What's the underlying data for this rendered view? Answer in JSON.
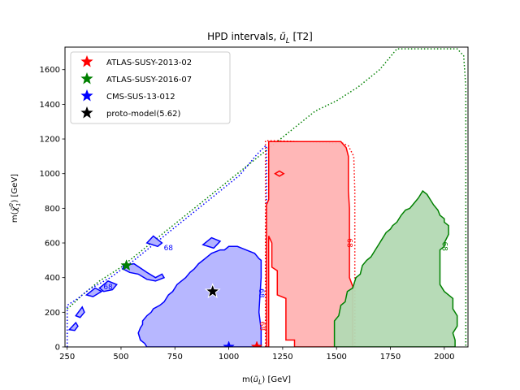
{
  "chart_data": {
    "type": "area",
    "title": "HPD intervals, ũ_L [T2]",
    "title_parts": {
      "main": "HPD intervals, ",
      "symbol": "ũ",
      "sub": "L",
      "tail": " [T2]"
    },
    "xlabel": "m(ũ_L) [GeV]",
    "xlabel_parts": {
      "pre": "m(",
      "symbol": "ũ",
      "sub": "L",
      "post": ") [GeV]"
    },
    "ylabel": "m(χ̃⁰₁) [GeV]",
    "ylabel_parts": {
      "pre": "m(",
      "symbol": "χ̃",
      "sup": "0",
      "sub": "1",
      "post": ") [GeV]"
    },
    "xlim": [
      240,
      2110
    ],
    "ylim": [
      0,
      1730
    ],
    "xticks": [
      "250",
      "500",
      "750",
      "1000",
      "1250",
      "1500",
      "1750",
      "2000"
    ],
    "xtick_values": [
      250,
      500,
      750,
      1000,
      1250,
      1500,
      1750,
      2000
    ],
    "yticks": [
      "0",
      "200",
      "400",
      "600",
      "800",
      "1000",
      "1200",
      "1400",
      "1600"
    ],
    "ytick_values": [
      0,
      200,
      400,
      600,
      800,
      1000,
      1200,
      1400,
      1600
    ],
    "grid": false,
    "legend_position": "top-left",
    "legend": [
      {
        "label": "ATLAS-SUSY-2013-02",
        "color": "#ff0000"
      },
      {
        "label": "ATLAS-SUSY-2016-07",
        "color": "#008000"
      },
      {
        "label": "CMS-SUS-13-012",
        "color": "#0000ff"
      },
      {
        "label": "proto-model(5.62)",
        "color": "#000000"
      }
    ],
    "contour_level_label": "68",
    "series": [
      {
        "name": "ATLAS-SUSY-2013-02",
        "color": "#ff0000",
        "fill": "#ffb3b3",
        "region": [
          [
            1175,
            0
          ],
          [
            1175,
            1185
          ],
          [
            1215,
            1185
          ],
          [
            1215,
            1180
          ],
          [
            1525,
            1180
          ],
          [
            1545,
            1150
          ],
          [
            1560,
            1100
          ],
          [
            1560,
            1000
          ],
          [
            1565,
            850
          ],
          [
            1570,
            600
          ],
          [
            1575,
            400
          ],
          [
            1575,
            0
          ],
          [
            1475,
            0
          ],
          [
            1470,
            40
          ],
          [
            1440,
            40
          ],
          [
            1420,
            100
          ],
          [
            1380,
            100
          ],
          [
            1360,
            30
          ],
          [
            1300,
            0
          ],
          [
            1300,
            0
          ]
        ],
        "region_display": [
          [
            1175,
            0
          ],
          [
            1175,
            820
          ],
          [
            1185,
            850
          ],
          [
            1185,
            1185
          ],
          [
            1520,
            1185
          ],
          [
            1545,
            1150
          ],
          [
            1555,
            1100
          ],
          [
            1555,
            900
          ],
          [
            1560,
            800
          ],
          [
            1560,
            400
          ],
          [
            1575,
            350
          ],
          [
            1575,
            0
          ],
          [
            1305,
            0
          ],
          [
            1305,
            40
          ],
          [
            1265,
            40
          ],
          [
            1265,
            280
          ],
          [
            1225,
            300
          ],
          [
            1225,
            440
          ],
          [
            1200,
            460
          ],
          [
            1200,
            600
          ],
          [
            1185,
            640
          ],
          [
            1185,
            0
          ]
        ],
        "outline_dotted": [
          [
            1170,
            0
          ],
          [
            1170,
            1190
          ],
          [
            1220,
            1190
          ],
          [
            1530,
            1175
          ],
          [
            1555,
            1160
          ],
          [
            1580,
            1100
          ],
          [
            1585,
            900
          ],
          [
            1585,
            0
          ]
        ],
        "extra_small": [
          [
            1215,
            1000
          ],
          [
            1235,
            1015
          ],
          [
            1255,
            1000
          ],
          [
            1235,
            985
          ]
        ],
        "star": [
          1130,
          0
        ]
      },
      {
        "name": "ATLAS-SUSY-2016-07",
        "color": "#008000",
        "fill": "#b3d9b3",
        "region": [
          [
            1490,
            0
          ],
          [
            1490,
            150
          ],
          [
            1510,
            180
          ],
          [
            1520,
            240
          ],
          [
            1540,
            260
          ],
          [
            1550,
            320
          ],
          [
            1575,
            340
          ],
          [
            1590,
            400
          ],
          [
            1610,
            420
          ],
          [
            1620,
            470
          ],
          [
            1640,
            500
          ],
          [
            1660,
            520
          ],
          [
            1680,
            560
          ],
          [
            1700,
            600
          ],
          [
            1710,
            620
          ],
          [
            1730,
            660
          ],
          [
            1750,
            680
          ],
          [
            1760,
            700
          ],
          [
            1780,
            720
          ],
          [
            1800,
            760
          ],
          [
            1820,
            790
          ],
          [
            1840,
            800
          ],
          [
            1860,
            830
          ],
          [
            1880,
            860
          ],
          [
            1900,
            900
          ],
          [
            1910,
            890
          ],
          [
            1920,
            880
          ],
          [
            1930,
            860
          ],
          [
            1950,
            820
          ],
          [
            1970,
            790
          ],
          [
            1980,
            760
          ],
          [
            2000,
            740
          ],
          [
            2000,
            720
          ],
          [
            2020,
            700
          ],
          [
            2020,
            650
          ],
          [
            2000,
            600
          ],
          [
            2000,
            580
          ],
          [
            1980,
            560
          ],
          [
            1980,
            360
          ],
          [
            2000,
            320
          ],
          [
            2040,
            280
          ],
          [
            2040,
            220
          ],
          [
            2060,
            180
          ],
          [
            2060,
            120
          ],
          [
            2040,
            80
          ],
          [
            2050,
            40
          ],
          [
            2050,
            0
          ]
        ],
        "outline_dotted": [
          [
            250,
            220
          ],
          [
            270,
            240
          ],
          [
            320,
            300
          ],
          [
            400,
            380
          ],
          [
            500,
            460
          ],
          [
            600,
            560
          ],
          [
            700,
            660
          ],
          [
            800,
            760
          ],
          [
            900,
            860
          ],
          [
            1000,
            960
          ],
          [
            1100,
            1060
          ],
          [
            1150,
            1110
          ],
          [
            1200,
            1160
          ],
          [
            1300,
            1260
          ],
          [
            1400,
            1360
          ],
          [
            1500,
            1420
          ],
          [
            1600,
            1500
          ],
          [
            1700,
            1600
          ],
          [
            1780,
            1720
          ],
          [
            2060,
            1720
          ],
          [
            2090,
            1680
          ],
          [
            2100,
            1500
          ],
          [
            2100,
            0
          ]
        ],
        "star": [
          525,
          470
        ]
      },
      {
        "name": "CMS-SUS-13-012",
        "color": "#0000ff",
        "fill": "#b3b3ff",
        "region": [
          [
            620,
            0
          ],
          [
            610,
            20
          ],
          [
            590,
            40
          ],
          [
            580,
            80
          ],
          [
            590,
            110
          ],
          [
            600,
            130
          ],
          [
            600,
            150
          ],
          [
            620,
            180
          ],
          [
            640,
            200
          ],
          [
            650,
            220
          ],
          [
            680,
            240
          ],
          [
            700,
            260
          ],
          [
            720,
            300
          ],
          [
            740,
            320
          ],
          [
            760,
            360
          ],
          [
            780,
            380
          ],
          [
            800,
            400
          ],
          [
            820,
            430
          ],
          [
            840,
            450
          ],
          [
            860,
            480
          ],
          [
            880,
            500
          ],
          [
            900,
            520
          ],
          [
            920,
            540
          ],
          [
            960,
            560
          ],
          [
            980,
            560
          ],
          [
            1000,
            580
          ],
          [
            1040,
            580
          ],
          [
            1060,
            570
          ],
          [
            1080,
            560
          ],
          [
            1100,
            550
          ],
          [
            1120,
            540
          ],
          [
            1140,
            510
          ],
          [
            1150,
            500
          ],
          [
            1150,
            400
          ],
          [
            1145,
            300
          ],
          [
            1140,
            200
          ],
          [
            1150,
            100
          ],
          [
            1150,
            0
          ]
        ],
        "outline_dotted": [
          [
            250,
            0
          ],
          [
            250,
            240
          ],
          [
            300,
            280
          ],
          [
            350,
            330
          ],
          [
            450,
            400
          ],
          [
            550,
            490
          ],
          [
            650,
            590
          ],
          [
            750,
            690
          ],
          [
            850,
            790
          ],
          [
            950,
            890
          ],
          [
            1050,
            990
          ],
          [
            1130,
            1110
          ],
          [
            1170,
            1160
          ],
          [
            1175,
            1160
          ],
          [
            1175,
            0
          ]
        ],
        "islands": [
          [
            [
              260,
              100
            ],
            [
              290,
              140
            ],
            [
              300,
              120
            ],
            [
              285,
              95
            ]
          ],
          [
            [
              290,
              180
            ],
            [
              320,
              230
            ],
            [
              330,
              200
            ],
            [
              310,
              170
            ]
          ],
          [
            [
              340,
              300
            ],
            [
              380,
              340
            ],
            [
              410,
              320
            ],
            [
              370,
              290
            ]
          ],
          [
            [
              400,
              340
            ],
            [
              440,
              380
            ],
            [
              480,
              360
            ],
            [
              460,
              330
            ],
            [
              420,
              320
            ]
          ],
          [
            [
              510,
              470
            ],
            [
              560,
              480
            ],
            [
              620,
              430
            ],
            [
              660,
              400
            ],
            [
              690,
              420
            ],
            [
              700,
              400
            ],
            [
              660,
              380
            ],
            [
              620,
              390
            ],
            [
              580,
              420
            ],
            [
              540,
              430
            ],
            [
              510,
              450
            ]
          ],
          [
            [
              620,
              600
            ],
            [
              650,
              640
            ],
            [
              690,
              600
            ],
            [
              670,
              580
            ]
          ],
          [
            [
              880,
              590
            ],
            [
              920,
              630
            ],
            [
              960,
              610
            ],
            [
              930,
              570
            ]
          ]
        ],
        "star": [
          1000,
          0
        ]
      },
      {
        "name": "proto-model(5.62)",
        "color": "#000000",
        "star": [
          925,
          320
        ]
      }
    ]
  }
}
